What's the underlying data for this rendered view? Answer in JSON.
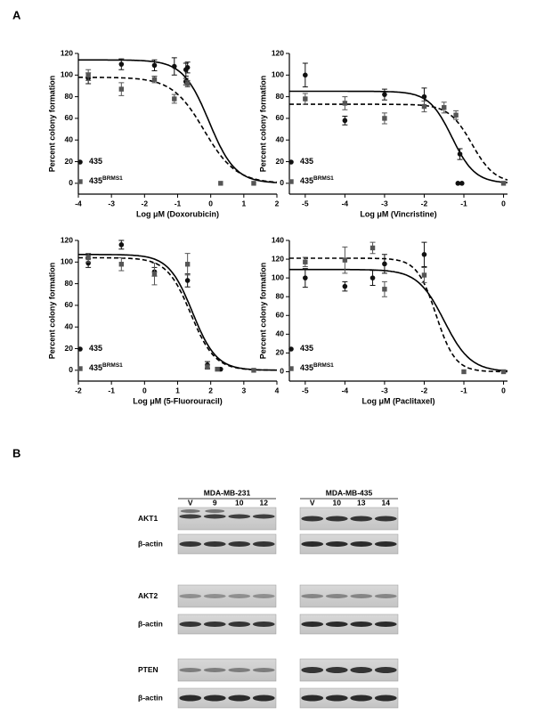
{
  "panels": {
    "a": "A",
    "b": "B"
  },
  "chart_data": [
    {
      "type": "scatter",
      "ylabel": "Percent colony formation",
      "xlabel": "Log μM (Doxorubicin)",
      "xlim": [
        -4,
        2
      ],
      "xticks": [
        -4,
        -3,
        -2,
        -1,
        0,
        1,
        2
      ],
      "ylim": [
        -10,
        120
      ],
      "yticks": [
        0,
        20,
        40,
        60,
        80,
        100,
        120
      ],
      "legend": "lower left",
      "series": [
        {
          "name": "435",
          "marker": "circle",
          "color": "#111111",
          "line_style": "solid",
          "x": [
            -3.7,
            -2.7,
            -1.7,
            -1.1,
            -0.75,
            -0.7,
            -0.75
          ],
          "values": [
            97,
            110,
            109,
            108,
            105,
            107,
            94
          ],
          "errors": [
            5,
            5,
            5,
            8,
            6,
            5,
            3
          ],
          "fit": {
            "top": 114,
            "bottom": 0,
            "log_ec50": -0.05,
            "hill": -1.1
          }
        },
        {
          "name": "435",
          "superscript": "BRMS1",
          "marker": "square",
          "color": "#555555",
          "line_style": "dashed",
          "x": [
            -3.7,
            -2.7,
            -1.7,
            -1.1,
            -0.7,
            0.3,
            1.3
          ],
          "values": [
            100,
            87,
            96,
            78,
            92,
            0,
            0
          ],
          "errors": [
            5,
            6,
            3,
            4,
            3,
            0,
            0
          ],
          "fit": {
            "top": 98,
            "bottom": 0,
            "log_ec50": -0.2,
            "hill": -0.9
          }
        }
      ]
    },
    {
      "type": "scatter",
      "ylabel": "Percent colony formation",
      "xlabel": "Log μM (Vincristine)",
      "xlim": [
        -5.4,
        0.1
      ],
      "xticks": [
        -5,
        -4,
        -3,
        -2,
        -1,
        0
      ],
      "ylim": [
        -10,
        120
      ],
      "yticks": [
        0,
        20,
        40,
        60,
        80,
        100,
        120
      ],
      "legend": "lower left",
      "series": [
        {
          "name": "435",
          "marker": "circle",
          "color": "#111111",
          "line_style": "solid",
          "x": [
            -5,
            -4,
            -3,
            -2,
            -1.1,
            -1.15,
            -1.05
          ],
          "values": [
            100,
            58,
            82,
            80,
            27,
            0,
            0
          ],
          "errors": [
            11,
            4,
            5,
            8,
            5,
            0,
            0
          ],
          "fit": {
            "top": 85,
            "bottom": 0,
            "log_ec50": -1.3,
            "hill": -1.5
          }
        },
        {
          "name": "435",
          "superscript": "BRMS1",
          "marker": "square",
          "color": "#555555",
          "line_style": "dashed",
          "x": [
            -5,
            -4,
            -3,
            -2,
            -1.5,
            -1.2,
            0
          ],
          "values": [
            78,
            74,
            60,
            71,
            70,
            63,
            0
          ],
          "errors": [
            5,
            6,
            5,
            5,
            5,
            4,
            0
          ],
          "fit": {
            "top": 73,
            "bottom": 0,
            "log_ec50": -0.8,
            "hill": -1.5
          }
        }
      ]
    },
    {
      "type": "scatter",
      "ylabel": "Percent colony formation",
      "xlabel": "Log μM (5-Fluorouracil)",
      "xlim": [
        -2,
        4
      ],
      "xticks": [
        -2,
        -1,
        0,
        1,
        2,
        3,
        4
      ],
      "ylim": [
        -10,
        120
      ],
      "yticks": [
        0,
        20,
        40,
        60,
        80,
        100,
        120
      ],
      "legend": "lower left",
      "series": [
        {
          "name": "435",
          "marker": "circle",
          "color": "#111111",
          "line_style": "solid",
          "x": [
            -1.7,
            -0.7,
            0.3,
            1.3,
            1.9,
            2.3
          ],
          "values": [
            99,
            116,
            91,
            83,
            5,
            1
          ],
          "errors": [
            4,
            4,
            4,
            6,
            3,
            0
          ],
          "fit": {
            "top": 107,
            "bottom": 0,
            "log_ec50": 1.45,
            "hill": -1.2
          }
        },
        {
          "name": "435",
          "superscript": "BRMS1",
          "marker": "square",
          "color": "#555555",
          "line_style": "dashed",
          "x": [
            -1.7,
            -0.7,
            0.3,
            1.3,
            1.9,
            2.2,
            3.3
          ],
          "values": [
            104,
            98,
            89,
            98,
            3,
            1,
            0
          ],
          "errors": [
            4,
            6,
            10,
            10,
            2,
            0,
            0
          ],
          "fit": {
            "top": 104,
            "bottom": 0,
            "log_ec50": 1.4,
            "hill": -1.2
          }
        }
      ]
    },
    {
      "type": "scatter",
      "ylabel": "Percent colony formation",
      "xlabel": "Log μM (Paclitaxel)",
      "xlim": [
        -5.4,
        0.1
      ],
      "xticks": [
        -5,
        -4,
        -3,
        -2,
        -1,
        0
      ],
      "ylim": [
        -10,
        140
      ],
      "yticks": [
        0,
        20,
        40,
        60,
        80,
        100,
        120,
        140
      ],
      "legend": "lower left",
      "series": [
        {
          "name": "435",
          "marker": "circle",
          "color": "#111111",
          "line_style": "solid",
          "x": [
            -5,
            -4,
            -3.3,
            -3,
            -2
          ],
          "values": [
            100,
            91,
            100,
            115,
            125
          ],
          "errors": [
            10,
            5,
            8,
            10,
            13
          ],
          "fit": {
            "top": 109,
            "bottom": 0,
            "log_ec50": -1.5,
            "hill": -1.3
          }
        },
        {
          "name": "435",
          "superscript": "BRMS1",
          "marker": "square",
          "color": "#555555",
          "line_style": "dashed",
          "x": [
            -5,
            -4,
            -3.3,
            -3,
            -2,
            -1,
            0
          ],
          "values": [
            117,
            119,
            132,
            88,
            103,
            0,
            0
          ],
          "errors": [
            5,
            14,
            6,
            8,
            8,
            0,
            0
          ],
          "fit": {
            "top": 121,
            "bottom": 0,
            "log_ec50": -1.7,
            "hill": -1.8
          }
        }
      ]
    }
  ],
  "blot": {
    "groups": [
      {
        "title": "MDA-MB-231",
        "lanes": [
          "V",
          "9",
          "10",
          "12"
        ]
      },
      {
        "title": "MDA-MB-435",
        "lanes": [
          "V",
          "10",
          "13",
          "14"
        ]
      }
    ],
    "rows": [
      "AKT1",
      "β-actin",
      "AKT2",
      "β-actin",
      "PTEN",
      "β-actin"
    ]
  }
}
